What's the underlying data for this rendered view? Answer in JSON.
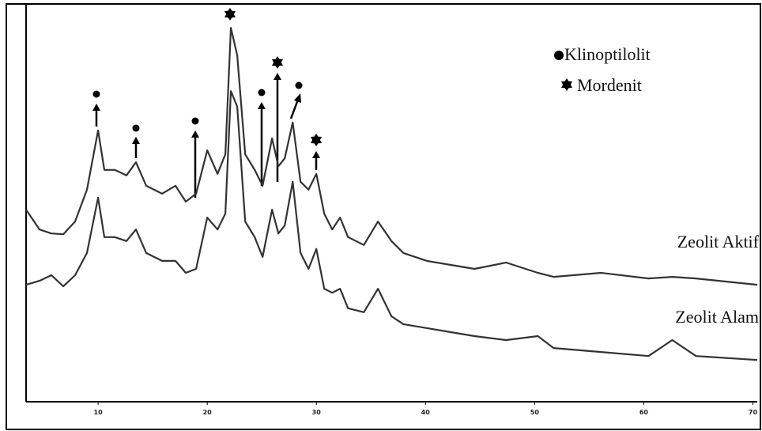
{
  "chart_data": {
    "type": "line",
    "legend": [
      "Klinoptilolit",
      "Mordenit"
    ],
    "x": [
      3.4,
      4.63,
      5.72,
      6.81,
      7.89,
      8.98,
      10.0,
      10.57,
      11.51,
      12.6,
      13.47,
      14.41,
      15.86,
      17.09,
      18.03,
      18.98,
      20.0,
      20.94,
      21.66,
      22.17,
      22.75,
      23.48,
      24.35,
      25.07,
      25.94,
      26.52,
      27.1,
      27.83,
      28.55,
      29.28,
      30.0,
      30.72,
      31.45,
      32.17,
      32.9,
      34.35,
      35.65,
      36.88,
      37.97,
      40.14,
      42.32,
      44.49,
      47.39,
      50.29,
      51.74,
      56.09,
      60.43,
      62.61,
      64.78,
      70.4
    ],
    "series": [
      {
        "name": "Zeolit Aktif",
        "color": "#333333",
        "values": [
          48.3,
          43.3,
          42.3,
          42.1,
          45.3,
          53.3,
          68.2,
          58.3,
          58.3,
          56.9,
          60.2,
          54.3,
          52.3,
          54.3,
          50.3,
          52.3,
          63.2,
          57.3,
          62.2,
          94.0,
          87.1,
          62.2,
          58.3,
          54.3,
          66.2,
          59.2,
          61.2,
          70.2,
          55.3,
          53.3,
          57.3,
          47.3,
          43.3,
          46.3,
          41.4,
          39.4,
          45.3,
          40.4,
          37.4,
          35.4,
          34.4,
          33.4,
          35.0,
          32.4,
          31.4,
          32.4,
          31.0,
          31.4,
          31.0,
          29.4
        ]
      },
      {
        "name": "Zeolit Alam",
        "color": "#333333",
        "values": [
          29.4,
          30.4,
          31.8,
          29.0,
          31.8,
          37.4,
          51.3,
          41.4,
          41.4,
          40.4,
          43.3,
          37.4,
          35.4,
          35.4,
          32.4,
          33.4,
          46.3,
          43.3,
          47.3,
          78.1,
          74.2,
          45.3,
          41.4,
          36.4,
          48.3,
          42.3,
          44.3,
          55.3,
          37.4,
          33.4,
          38.4,
          28.4,
          27.4,
          28.4,
          23.5,
          22.5,
          28.4,
          21.5,
          19.5,
          18.5,
          17.5,
          16.5,
          15.5,
          16.5,
          13.5,
          12.5,
          11.5,
          15.5,
          11.5,
          10.5
        ]
      }
    ],
    "xlim": [
      3.4,
      70.4
    ],
    "xticks": [
      10,
      20,
      30,
      40,
      50,
      60,
      70
    ],
    "ylim": [
      0,
      100
    ]
  }
}
